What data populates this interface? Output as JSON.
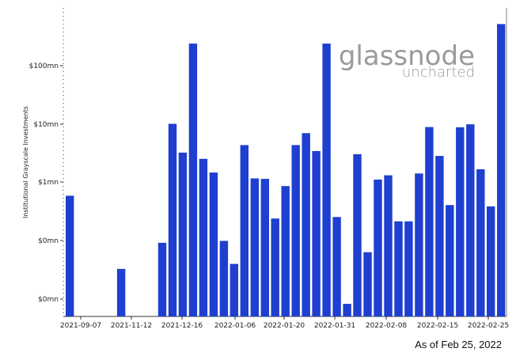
{
  "caption": "As of Feb 25, 2022",
  "watermark": {
    "brand": "glassnode",
    "sub": "uncharted"
  },
  "colors": {
    "bar": "#1f3fd0",
    "axis": "#333333",
    "text": "#222222",
    "watermark": "#9a9a9a"
  },
  "chart_data": {
    "type": "bar",
    "title": "",
    "xlabel": "",
    "ylabel": "Institutional Grayscale Investments",
    "scale": "log",
    "y_ticks": [
      "$0mn",
      "$0mn",
      "$1mn",
      "$10mn",
      "$100mn"
    ],
    "x_ticks": [
      "2021-09-07",
      "2021-11-12",
      "2021-12-16",
      "2022-01-06",
      "2022-01-20",
      "2022-01-31",
      "2022-02-08",
      "2022-02-15",
      "2022-02-25"
    ],
    "grid": false,
    "legend": "none",
    "unit": "USD",
    "values": [
      580000,
      0,
      0,
      0,
      0,
      32000,
      0,
      0,
      0,
      90000,
      10000000,
      3200000,
      240000000,
      2500000,
      1450000,
      97000,
      39000,
      4300000,
      1150000,
      1130000,
      235000,
      850000,
      4300000,
      6900000,
      3400000,
      240000000,
      250000,
      8000,
      3000000,
      62000,
      1100000,
      1300000,
      210000,
      210000,
      1400000,
      8800000,
      2800000,
      400000,
      8700000,
      9800000,
      1650000,
      380000,
      520000000
    ]
  }
}
